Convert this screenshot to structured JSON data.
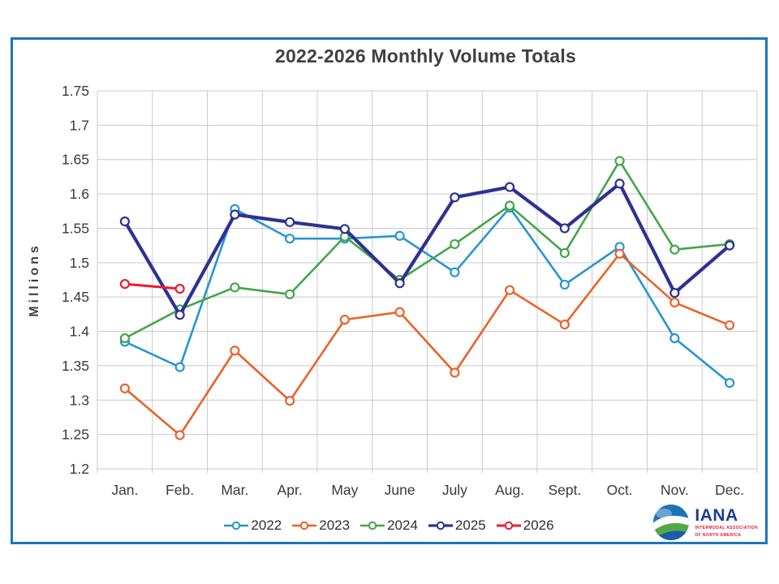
{
  "title": "2022-2026 Monthly Volume Totals",
  "y_axis_title": "Millions",
  "logo": {
    "name": "IANA",
    "tagline_line1": "INTERMODAL ASSOCIATION",
    "tagline_line2": "OF NORTH AMERICA"
  },
  "colors": {
    "frame_border": "#1B75BC",
    "gridline": "#C9C9C9",
    "axis_text": "#3A3A3A",
    "title_text": "#404040",
    "logo_blue": "#1A3E94",
    "logo_red": "#E3172C"
  },
  "chart_data": {
    "type": "line",
    "title": "2022-2026 Monthly Volume Totals",
    "xlabel": "",
    "ylabel": "Millions",
    "ylim": [
      1.2,
      1.75
    ],
    "ytick_step": 0.05,
    "ytick_labels": [
      "1.2",
      "1.25",
      "1.3",
      "1.35",
      "1.4",
      "1.45",
      "1.5",
      "1.55",
      "1.6",
      "1.65",
      "1.7",
      "1.75"
    ],
    "grid": true,
    "marker": "open-circle",
    "legend_position": "bottom",
    "categories": [
      "Jan.",
      "Feb.",
      "Mar.",
      "Apr.",
      "May",
      "June",
      "July",
      "Aug.",
      "Sept.",
      "Oct.",
      "Nov.",
      "Dec."
    ],
    "series": [
      {
        "name": "2022",
        "color": "#2795D3",
        "line_width": 2.6,
        "values": [
          1.385,
          1.348,
          1.578,
          1.535,
          1.535,
          1.539,
          1.486,
          1.58,
          1.468,
          1.523,
          1.39,
          1.325
        ]
      },
      {
        "name": "2023",
        "color": "#E8632C",
        "line_width": 2.6,
        "values": [
          1.317,
          1.249,
          1.372,
          1.299,
          1.417,
          1.428,
          1.34,
          1.46,
          1.41,
          1.513,
          1.442,
          1.409
        ]
      },
      {
        "name": "2024",
        "color": "#41A648",
        "line_width": 2.6,
        "values": [
          1.39,
          1.432,
          1.464,
          1.454,
          1.538,
          1.475,
          1.527,
          1.583,
          1.514,
          1.648,
          1.519,
          1.527
        ]
      },
      {
        "name": "2025",
        "color": "#2E3192",
        "line_width": 4.2,
        "values": [
          1.56,
          1.424,
          1.57,
          1.559,
          1.549,
          1.47,
          1.595,
          1.61,
          1.55,
          1.615,
          1.456,
          1.525
        ]
      },
      {
        "name": "2026",
        "color": "#EB1C2D",
        "line_width": 3.0,
        "values": [
          1.469,
          1.462,
          null,
          null,
          null,
          null,
          null,
          null,
          null,
          null,
          null,
          null
        ]
      }
    ]
  }
}
